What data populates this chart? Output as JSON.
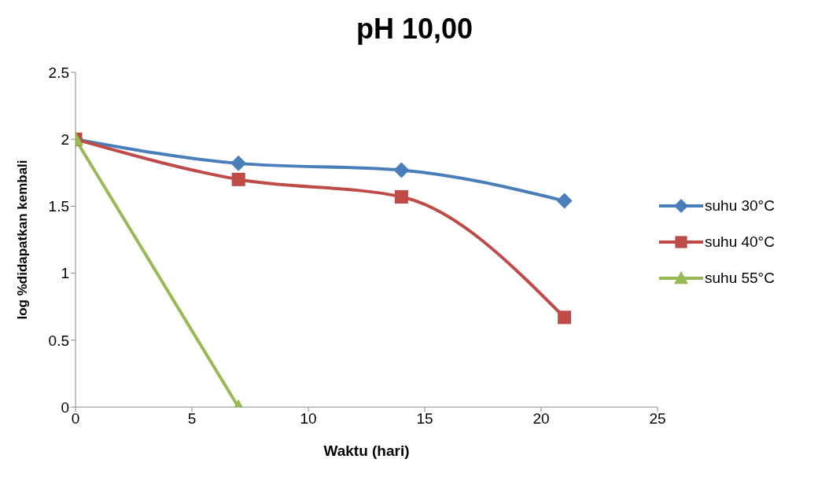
{
  "chart_data": {
    "type": "line",
    "title": "pH 10,00",
    "xlabel": "Waktu (hari)",
    "ylabel": "log %didapatkan kembali",
    "x": [
      0,
      7,
      14,
      21
    ],
    "xlim": [
      0,
      25
    ],
    "xticks": [
      0,
      5,
      10,
      15,
      20,
      25
    ],
    "ylim": [
      0,
      2.5
    ],
    "yticks": [
      0,
      0.5,
      1,
      1.5,
      2,
      2.5
    ],
    "grid": false,
    "legend": "right",
    "line_style": "solid",
    "series": [
      {
        "name": "suhu 30°C",
        "color": "#4a7ebb",
        "marker": "diamond",
        "values": [
          2,
          1.82,
          1.77,
          1.54
        ]
      },
      {
        "name": "suhu 40°C",
        "color": "#be4b48",
        "marker": "square",
        "values": [
          2,
          1.7,
          1.57,
          0.67
        ]
      },
      {
        "name": "suhu 55°C",
        "color": "#98b954",
        "marker": "triangle",
        "values": [
          2,
          0,
          null,
          null
        ]
      }
    ]
  }
}
